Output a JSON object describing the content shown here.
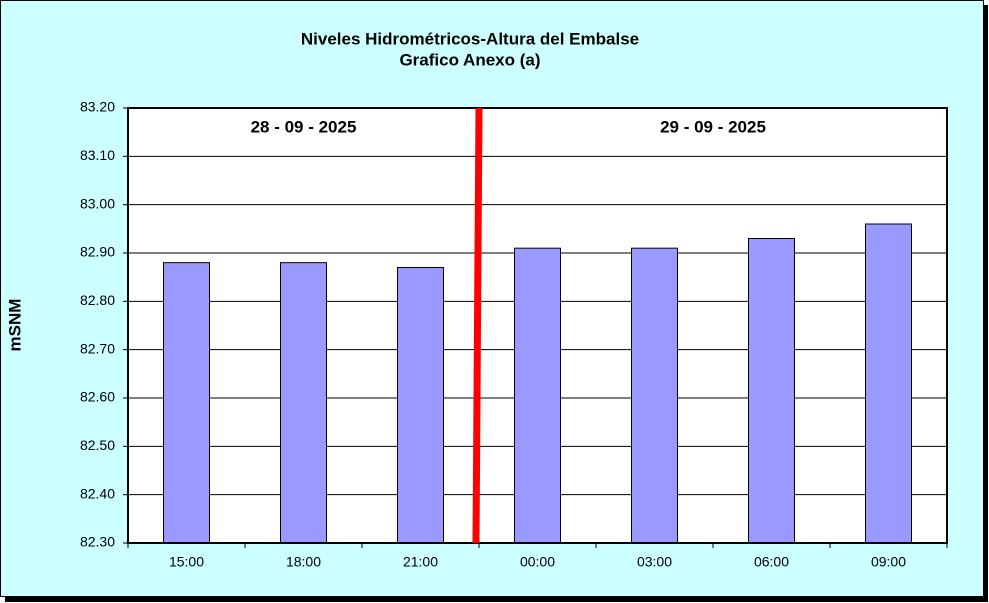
{
  "chart_data": {
    "type": "bar",
    "title": "Niveles Hidrométricos-Altura del Embalse",
    "subtitle": "Grafico Anexo (a)",
    "y_label": "mSNM",
    "categories": [
      "15:00",
      "18:00",
      "21:00",
      "00:00",
      "03:00",
      "06:00",
      "09:00"
    ],
    "values": [
      82.88,
      82.88,
      82.87,
      82.91,
      82.91,
      82.93,
      82.96
    ],
    "color": "#9999ff",
    "ylim": [
      82.3,
      83.2
    ],
    "yticks": [
      {
        "value": 82.3,
        "label": "82.30"
      },
      {
        "value": 82.4,
        "label": "82.40"
      },
      {
        "value": 82.5,
        "label": "82.50"
      },
      {
        "value": 82.6,
        "label": "82.60"
      },
      {
        "value": 82.7,
        "label": "82.70"
      },
      {
        "value": 82.8,
        "label": "82.80"
      },
      {
        "value": 82.9,
        "label": "82.90"
      },
      {
        "value": 83.0,
        "label": "83.00"
      },
      {
        "value": 83.1,
        "label": "83.10"
      },
      {
        "value": 83.2,
        "label": "83.20"
      }
    ],
    "grid": true,
    "annotations": [
      "28 - 09 - 2025",
      "29 - 09 - 2025"
    ]
  }
}
